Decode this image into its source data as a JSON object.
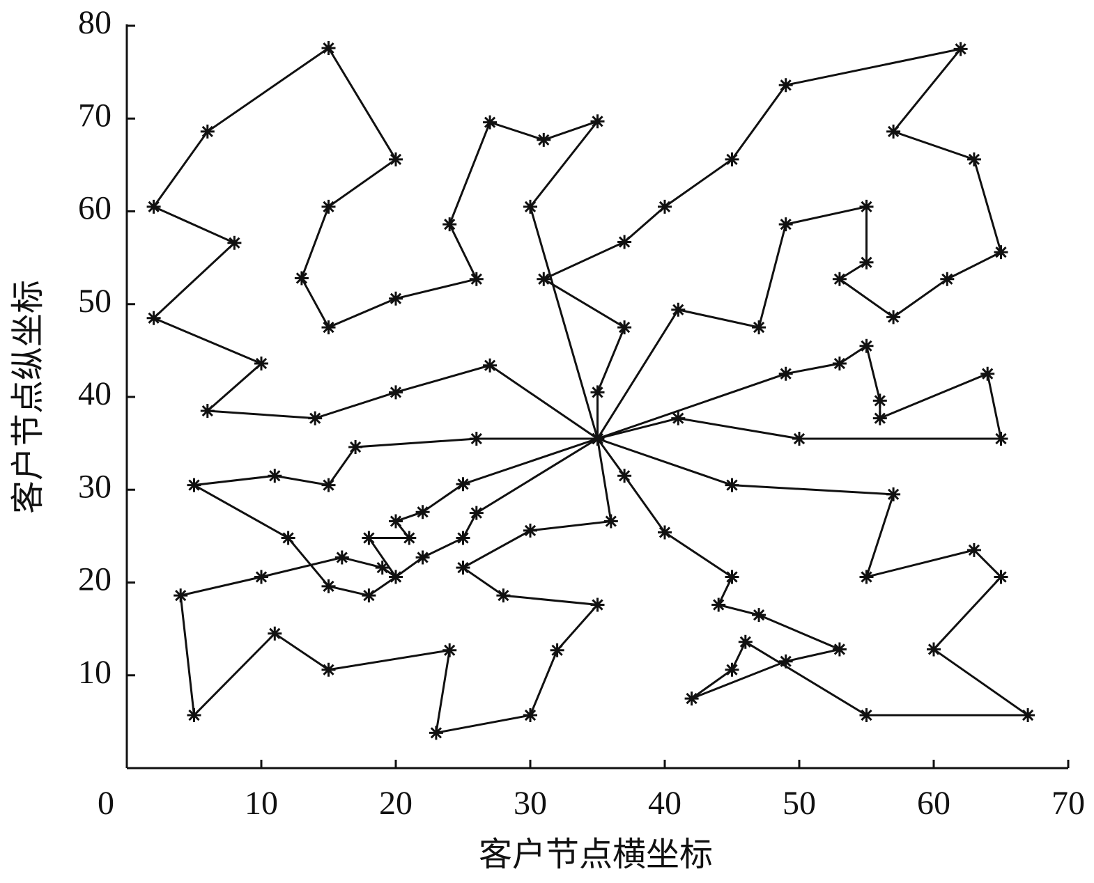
{
  "chart_data": {
    "type": "line",
    "marker": "asterisk",
    "x_label": "客户节点横坐标",
    "y_label": "客户节点纵坐标",
    "xlim": [
      0,
      70
    ],
    "ylim": [
      0,
      80
    ],
    "xticks": [
      0,
      10,
      20,
      30,
      40,
      50,
      60,
      70
    ],
    "yticks": [
      10,
      20,
      30,
      40,
      50,
      60,
      70,
      80
    ],
    "grid": false,
    "series": [
      {
        "color": "#111111",
        "x": [
          35,
          30,
          35,
          31,
          27,
          24,
          26,
          20,
          15,
          13,
          15,
          20,
          15,
          6,
          2,
          8,
          2,
          10,
          6,
          14,
          20,
          27,
          35
        ],
        "values": [
          35.5,
          60.5,
          69.7,
          67.7,
          69.6,
          58.6,
          52.7,
          50.6,
          47.5,
          52.8,
          60.5,
          65.6,
          77.6,
          68.6,
          60.5,
          56.6,
          48.5,
          43.6,
          38.5,
          37.7,
          40.5,
          43.4,
          35.5
        ]
      },
      {
        "color": "#111111",
        "x": [
          35,
          35,
          37,
          31,
          37,
          40,
          45,
          49,
          62,
          57,
          63,
          65,
          61,
          57,
          53,
          55,
          55,
          49,
          47,
          41,
          35
        ],
        "values": [
          35.5,
          40.5,
          47.5,
          52.7,
          56.7,
          60.5,
          65.6,
          73.6,
          77.5,
          68.6,
          65.6,
          55.6,
          52.7,
          48.6,
          52.7,
          54.5,
          60.5,
          58.6,
          47.5,
          49.4,
          35.5
        ]
      },
      {
        "color": "#111111",
        "x": [
          35,
          49,
          53,
          55,
          56,
          56,
          64,
          65,
          50,
          41,
          35
        ],
        "values": [
          35.5,
          42.5,
          43.6,
          45.5,
          39.6,
          37.7,
          42.5,
          35.5,
          35.5,
          37.7,
          35.5
        ]
      },
      {
        "color": "#111111",
        "x": [
          35,
          45,
          57,
          55,
          63,
          65,
          60,
          67,
          55,
          46,
          45,
          42,
          49,
          53,
          47,
          44,
          45,
          40,
          37,
          35
        ],
        "values": [
          35.5,
          30.5,
          29.5,
          20.6,
          23.5,
          20.6,
          12.8,
          5.7,
          5.7,
          13.6,
          10.6,
          7.5,
          11.5,
          12.8,
          16.5,
          17.6,
          20.6,
          25.4,
          31.5,
          35.5
        ]
      },
      {
        "color": "#111111",
        "x": [
          35,
          36,
          30,
          25,
          28,
          35,
          32,
          30,
          23,
          24,
          15,
          11,
          5,
          4,
          10,
          16,
          19,
          20,
          18,
          21,
          20,
          22,
          25,
          35
        ],
        "values": [
          35.5,
          26.6,
          25.6,
          21.6,
          18.6,
          17.6,
          12.7,
          5.7,
          3.8,
          12.7,
          10.6,
          14.5,
          5.7,
          18.6,
          20.6,
          22.7,
          21.6,
          20.6,
          24.8,
          24.8,
          26.6,
          27.6,
          30.6,
          35.5
        ]
      },
      {
        "color": "#111111",
        "x": [
          35,
          26,
          25,
          22,
          20,
          18,
          15,
          12,
          5,
          11,
          15,
          17,
          26,
          35
        ],
        "values": [
          35.5,
          27.5,
          24.8,
          22.7,
          20.6,
          18.6,
          19.6,
          24.8,
          30.5,
          31.5,
          30.5,
          34.6,
          35.5,
          35.5
        ]
      }
    ]
  }
}
